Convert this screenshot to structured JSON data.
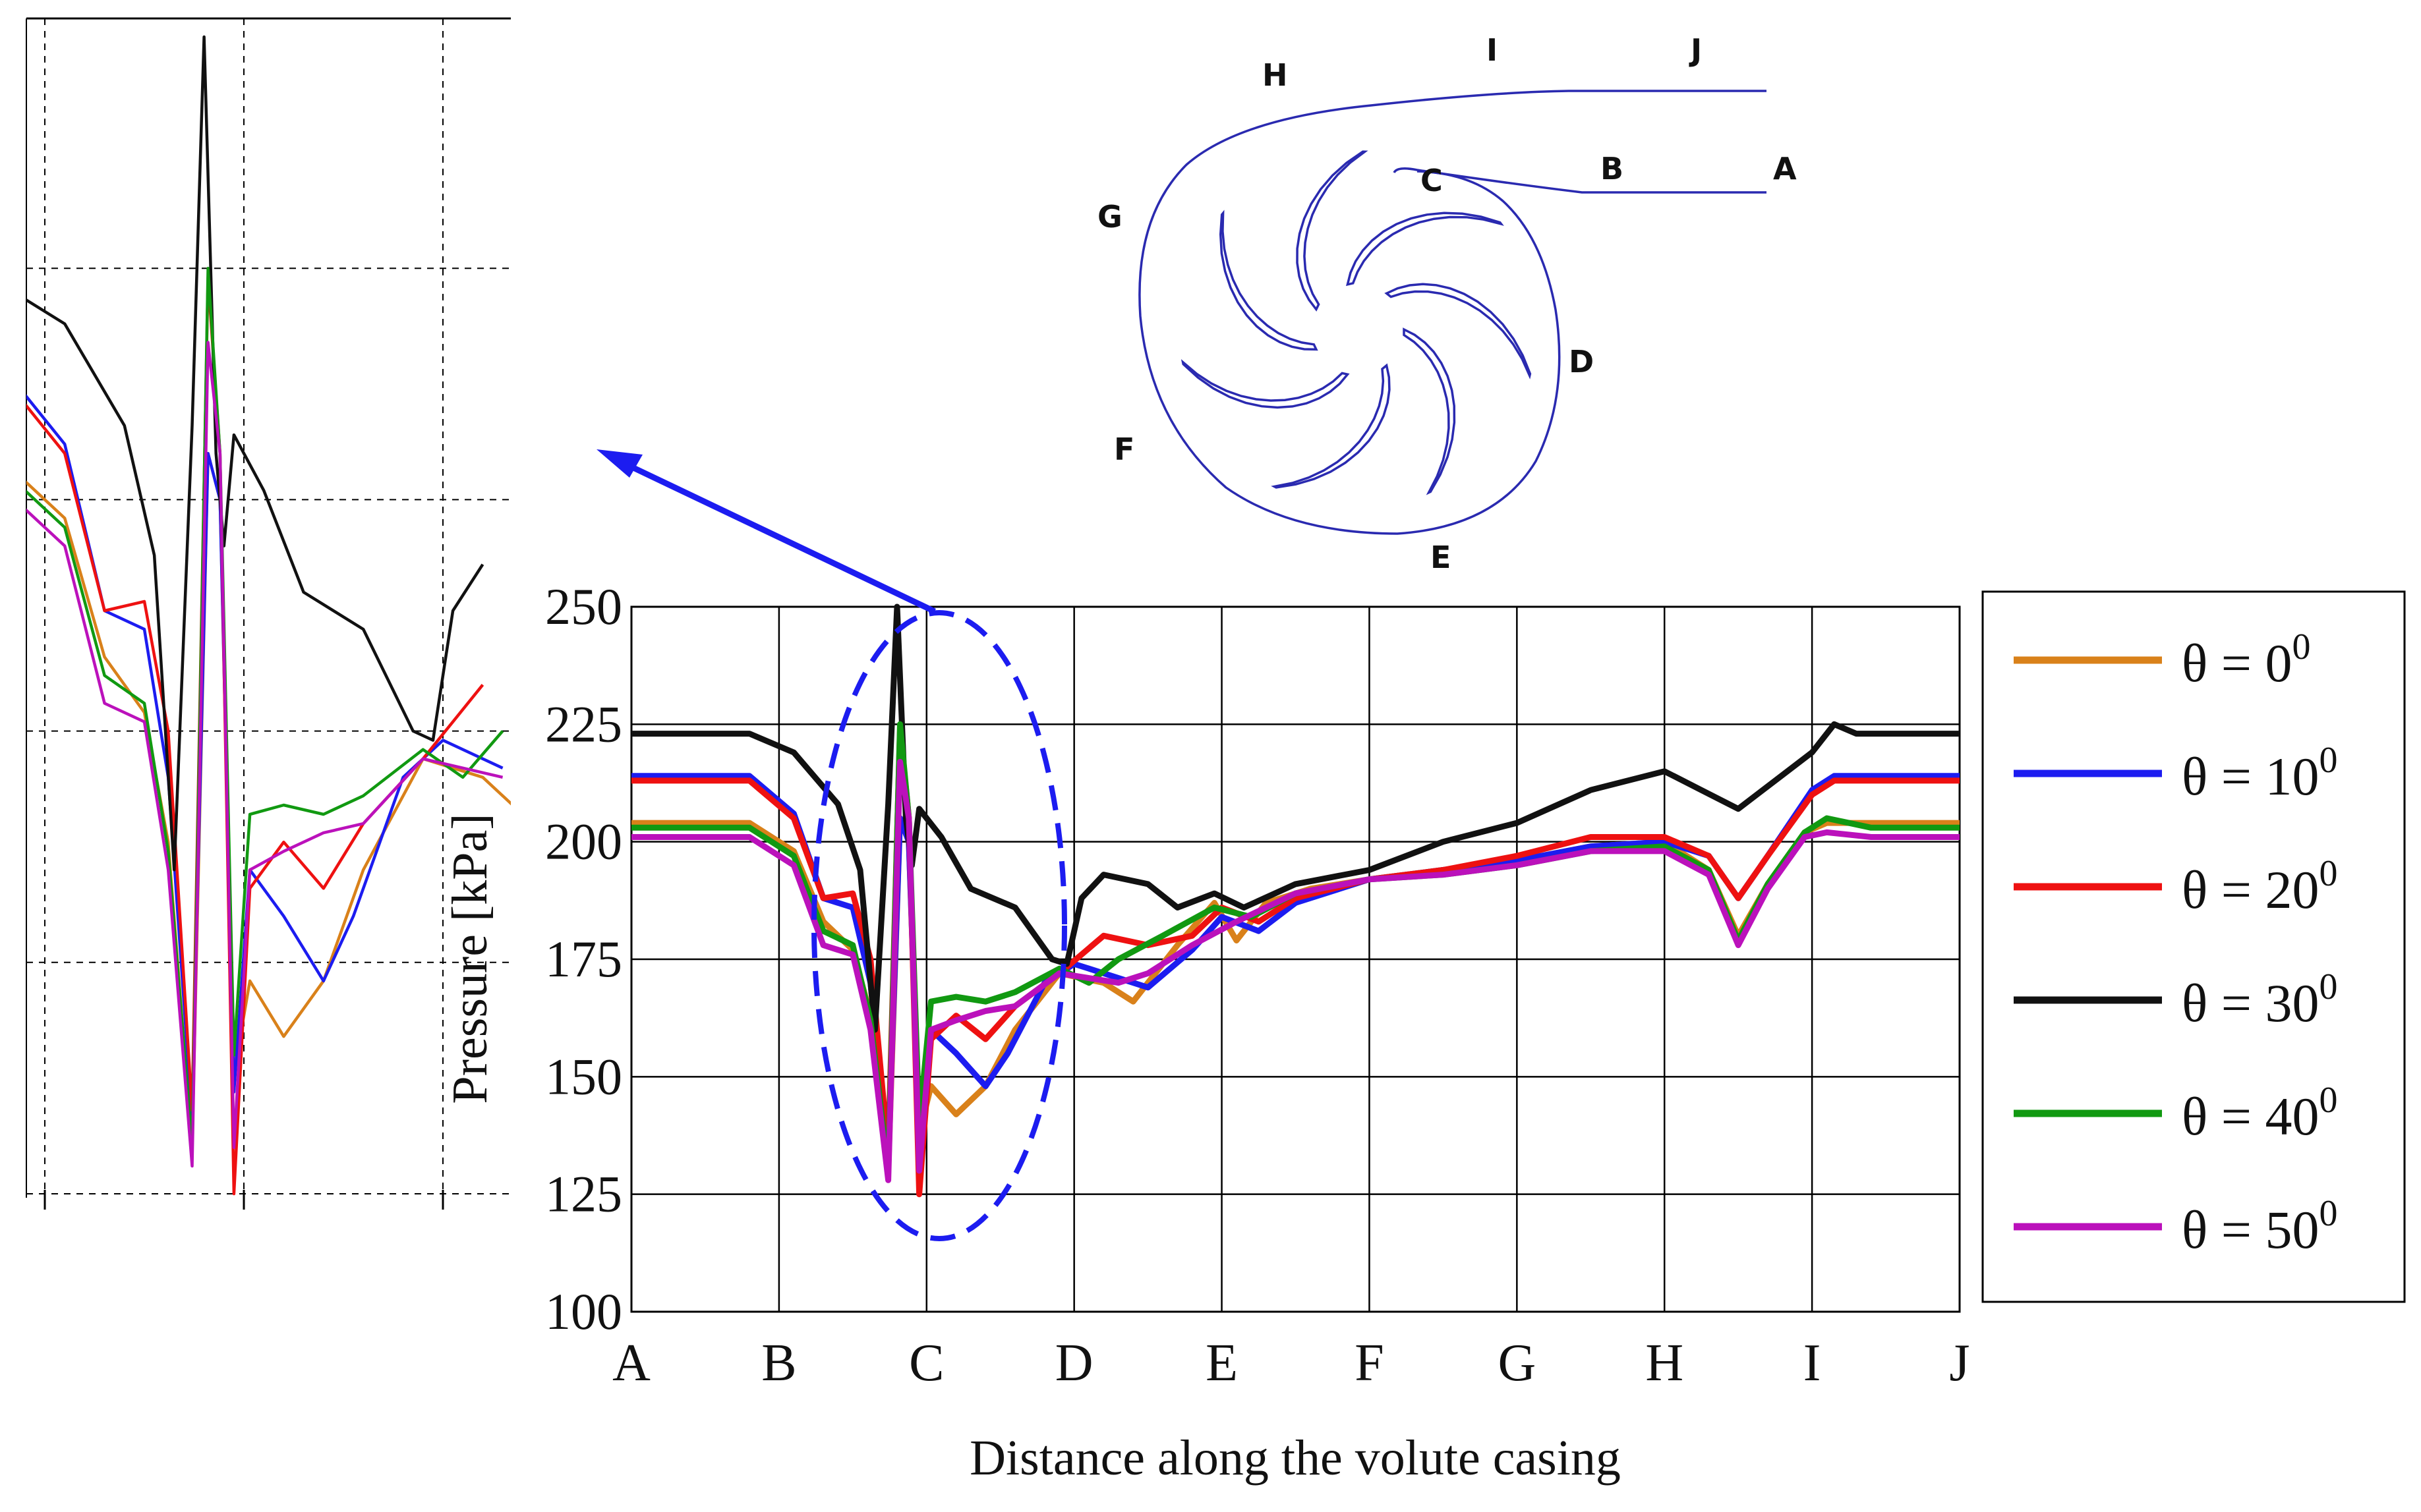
{
  "chart_data": {
    "type": "line",
    "xlabel": "Distance along the volute casing",
    "ylabel": "Pressure [kPa]",
    "ylim": [
      100,
      250
    ],
    "yticks": [
      100,
      125,
      150,
      175,
      200,
      225,
      250
    ],
    "categories": [
      "A",
      "B",
      "C",
      "D",
      "E",
      "F",
      "G",
      "H",
      "I",
      "J"
    ],
    "grid": true,
    "legend_position": "right",
    "series": [
      {
        "name": "θ = 0",
        "sup": "0",
        "color": "#d9811a",
        "points": [
          [
            0,
            204
          ],
          [
            0.8,
            204
          ],
          [
            1.1,
            198
          ],
          [
            1.3,
            183
          ],
          [
            1.5,
            177
          ],
          [
            1.62,
            163
          ],
          [
            1.74,
            130
          ],
          [
            1.82,
            205
          ],
          [
            1.88,
            200
          ],
          [
            1.95,
            138
          ],
          [
            2.03,
            148
          ],
          [
            2.2,
            142
          ],
          [
            2.4,
            148
          ],
          [
            2.6,
            160
          ],
          [
            2.9,
            172
          ],
          [
            3.2,
            170
          ],
          [
            3.4,
            166
          ],
          [
            3.7,
            178
          ],
          [
            3.95,
            187
          ],
          [
            4.1,
            179
          ],
          [
            4.3,
            187
          ],
          [
            4.6,
            190
          ],
          [
            5.0,
            192
          ],
          [
            5.5,
            194
          ],
          [
            6.0,
            196
          ],
          [
            6.5,
            199
          ],
          [
            7.0,
            200
          ],
          [
            7.3,
            194
          ],
          [
            7.5,
            180
          ],
          [
            7.7,
            191
          ],
          [
            7.95,
            202
          ],
          [
            8.1,
            204
          ],
          [
            8.4,
            204
          ],
          [
            9.0,
            204
          ]
        ]
      },
      {
        "name": "θ = 10",
        "sup": "0",
        "color": "#1c1cf0",
        "points": [
          [
            0,
            214
          ],
          [
            0.8,
            214
          ],
          [
            1.1,
            206
          ],
          [
            1.3,
            188
          ],
          [
            1.5,
            186
          ],
          [
            1.62,
            170
          ],
          [
            1.74,
            133
          ],
          [
            1.82,
            205
          ],
          [
            1.88,
            200
          ],
          [
            1.95,
            136
          ],
          [
            2.03,
            160
          ],
          [
            2.2,
            155
          ],
          [
            2.4,
            148
          ],
          [
            2.55,
            155
          ],
          [
            2.8,
            170
          ],
          [
            3.0,
            174
          ],
          [
            3.3,
            171
          ],
          [
            3.5,
            169
          ],
          [
            3.8,
            177
          ],
          [
            4.0,
            184
          ],
          [
            4.25,
            181
          ],
          [
            4.5,
            187
          ],
          [
            5.0,
            192
          ],
          [
            5.5,
            194
          ],
          [
            6.0,
            196
          ],
          [
            6.5,
            199
          ],
          [
            7.0,
            200
          ],
          [
            7.3,
            197
          ],
          [
            7.5,
            188
          ],
          [
            7.7,
            197
          ],
          [
            8.0,
            211
          ],
          [
            8.15,
            214
          ],
          [
            9.0,
            214
          ]
        ]
      },
      {
        "name": "θ = 20",
        "sup": "0",
        "color": "#ee1111",
        "points": [
          [
            0,
            213
          ],
          [
            0.8,
            213
          ],
          [
            1.1,
            205
          ],
          [
            1.3,
            188
          ],
          [
            1.5,
            189
          ],
          [
            1.62,
            175
          ],
          [
            1.74,
            134
          ],
          [
            1.82,
            224
          ],
          [
            1.88,
            205
          ],
          [
            1.95,
            125
          ],
          [
            2.03,
            158
          ],
          [
            2.2,
            163
          ],
          [
            2.4,
            158
          ],
          [
            2.6,
            165
          ],
          [
            2.9,
            172
          ],
          [
            3.2,
            180
          ],
          [
            3.5,
            178
          ],
          [
            3.8,
            180
          ],
          [
            4.0,
            186
          ],
          [
            4.25,
            183
          ],
          [
            4.5,
            188
          ],
          [
            5.0,
            192
          ],
          [
            5.5,
            194
          ],
          [
            6.0,
            197
          ],
          [
            6.5,
            201
          ],
          [
            7.0,
            201
          ],
          [
            7.3,
            197
          ],
          [
            7.5,
            188
          ],
          [
            7.7,
            197
          ],
          [
            8.0,
            210
          ],
          [
            8.15,
            213
          ],
          [
            9.0,
            213
          ]
        ]
      },
      {
        "name": "θ = 30",
        "sup": "0",
        "color": "#111111",
        "points": [
          [
            0,
            223
          ],
          [
            0.8,
            223
          ],
          [
            1.1,
            219
          ],
          [
            1.4,
            208
          ],
          [
            1.55,
            194
          ],
          [
            1.65,
            160
          ],
          [
            1.74,
            208
          ],
          [
            1.8,
            250
          ],
          [
            1.86,
            205
          ],
          [
            1.9,
            195
          ],
          [
            1.95,
            207
          ],
          [
            2.1,
            201
          ],
          [
            2.3,
            190
          ],
          [
            2.6,
            186
          ],
          [
            2.85,
            175
          ],
          [
            2.95,
            174
          ],
          [
            3.05,
            188
          ],
          [
            3.2,
            193
          ],
          [
            3.5,
            191
          ],
          [
            3.7,
            186
          ],
          [
            3.95,
            189
          ],
          [
            4.15,
            186
          ],
          [
            4.5,
            191
          ],
          [
            5.0,
            194
          ],
          [
            5.5,
            200
          ],
          [
            6.0,
            204
          ],
          [
            6.5,
            211
          ],
          [
            7.0,
            215
          ],
          [
            7.25,
            211
          ],
          [
            7.5,
            207
          ],
          [
            7.75,
            213
          ],
          [
            8.0,
            219
          ],
          [
            8.15,
            225
          ],
          [
            8.3,
            223
          ],
          [
            9.0,
            223
          ]
        ]
      },
      {
        "name": "θ = 40",
        "sup": "0",
        "color": "#119911",
        "points": [
          [
            0,
            203
          ],
          [
            0.8,
            203
          ],
          [
            1.1,
            197
          ],
          [
            1.3,
            181
          ],
          [
            1.5,
            178
          ],
          [
            1.62,
            162
          ],
          [
            1.74,
            130
          ],
          [
            1.82,
            225
          ],
          [
            1.88,
            205
          ],
          [
            1.95,
            140
          ],
          [
            2.03,
            166
          ],
          [
            2.2,
            167
          ],
          [
            2.4,
            166
          ],
          [
            2.6,
            168
          ],
          [
            2.9,
            173
          ],
          [
            3.1,
            170
          ],
          [
            3.3,
            175
          ],
          [
            3.6,
            180
          ],
          [
            3.95,
            186
          ],
          [
            4.2,
            184
          ],
          [
            4.5,
            189
          ],
          [
            5.0,
            192
          ],
          [
            5.5,
            193
          ],
          [
            6.0,
            195
          ],
          [
            6.5,
            198
          ],
          [
            7.0,
            199
          ],
          [
            7.3,
            194
          ],
          [
            7.5,
            179
          ],
          [
            7.7,
            191
          ],
          [
            7.95,
            202
          ],
          [
            8.1,
            205
          ],
          [
            8.4,
            203
          ],
          [
            9.0,
            203
          ]
        ]
      },
      {
        "name": "θ = 50",
        "sup": "0",
        "color": "#bb11bb",
        "points": [
          [
            0,
            201
          ],
          [
            0.8,
            201
          ],
          [
            1.1,
            195
          ],
          [
            1.3,
            178
          ],
          [
            1.5,
            176
          ],
          [
            1.62,
            160
          ],
          [
            1.74,
            128
          ],
          [
            1.82,
            217
          ],
          [
            1.88,
            205
          ],
          [
            1.95,
            130
          ],
          [
            2.03,
            160
          ],
          [
            2.2,
            162
          ],
          [
            2.4,
            164
          ],
          [
            2.6,
            165
          ],
          [
            2.9,
            172
          ],
          [
            3.3,
            170
          ],
          [
            3.5,
            172
          ],
          [
            3.8,
            178
          ],
          [
            4.1,
            183
          ],
          [
            4.5,
            189
          ],
          [
            5.0,
            192
          ],
          [
            5.5,
            193
          ],
          [
            6.0,
            195
          ],
          [
            6.5,
            198
          ],
          [
            7.0,
            198
          ],
          [
            7.3,
            193
          ],
          [
            7.5,
            178
          ],
          [
            7.7,
            190
          ],
          [
            7.95,
            201
          ],
          [
            8.1,
            202
          ],
          [
            8.4,
            201
          ],
          [
            9.0,
            201
          ]
        ]
      }
    ]
  },
  "inset": {
    "x_range": [
      1.0,
      3.0
    ],
    "y_range": [
      125,
      250
    ],
    "description": "zoomed view of the region around C"
  },
  "volute_diagram": {
    "labels": [
      "A",
      "B",
      "C",
      "D",
      "E",
      "F",
      "G",
      "H",
      "I",
      "J"
    ]
  },
  "colors": {
    "axis": "#000000",
    "grid": "#000000",
    "ellipse": "#1c1cf0",
    "arrow": "#1c1cf0",
    "diagram": "#2a2ab0"
  }
}
